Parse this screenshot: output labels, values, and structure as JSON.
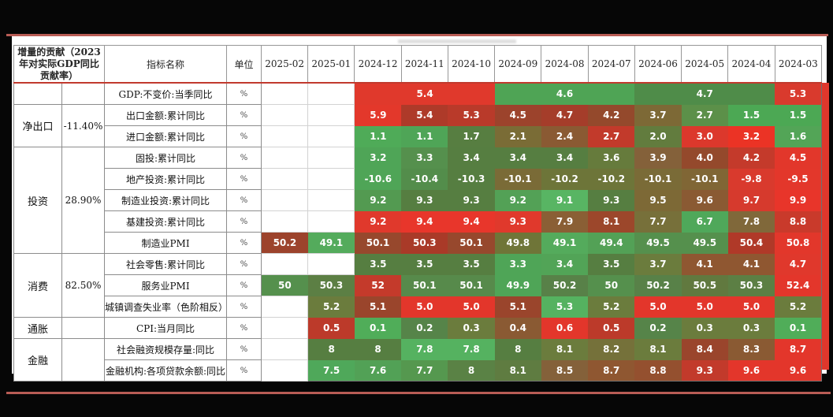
{
  "frame": {
    "background": "#060606",
    "accent_line_color": "#b85c55",
    "clipped_column_color": "#df372c",
    "header_rule_color": "#c13a2e"
  },
  "chart_data": {
    "type": "heatmap",
    "legend_note": "row-wise red(high) to green(low) color scale; unemployment row reversed",
    "columns": [
      "2025-02",
      "2025-01",
      "2024-12",
      "2024-11",
      "2024-10",
      "2024-09",
      "2024-08",
      "2024-07",
      "2024-06",
      "2024-05",
      "2024-04",
      "2024-03"
    ],
    "header": {
      "left": "增量的贡献（2023年对实际GDP同比贡献率）",
      "indicator": "指标名称",
      "unit": "单位"
    },
    "groups": [
      {
        "category": "",
        "contribution": "",
        "rows": [
          {
            "indicator": "GDP:不变价:当季同比",
            "unit": "%",
            "cells": [
              {
                "v": "",
                "span": 1
              },
              {
                "v": "",
                "span": 1
              },
              {
                "v": "5.4",
                "span": 3,
                "bg": "#e0392c"
              },
              {
                "v": "4.6",
                "span": 3,
                "bg": "#4fa455"
              },
              {
                "v": "4.7",
                "span": 3,
                "bg": "#4f8c49"
              },
              {
                "v": "5.3",
                "span": 1,
                "bg": "#d93a2d"
              }
            ]
          }
        ]
      },
      {
        "category": "净出口",
        "contribution": "-11.40%",
        "rows": [
          {
            "indicator": "出口金额:累计同比",
            "unit": "%",
            "cells": [
              {
                "v": ""
              },
              {
                "v": ""
              },
              {
                "v": "5.9",
                "bg": "#e3382b"
              },
              {
                "v": "5.4",
                "bg": "#ae3a29"
              },
              {
                "v": "5.3",
                "bg": "#b93a2a"
              },
              {
                "v": "4.5",
                "bg": "#9c432c"
              },
              {
                "v": "4.7",
                "bg": "#a53d2a"
              },
              {
                "v": "4.2",
                "bg": "#94492c"
              },
              {
                "v": "3.7",
                "bg": "#7d6936"
              },
              {
                "v": "2.7",
                "bg": "#5c9049"
              },
              {
                "v": "1.5",
                "bg": "#4ca854"
              },
              {
                "v": "1.5",
                "bg": "#4ca854"
              }
            ]
          },
          {
            "indicator": "进口金额:累计同比",
            "unit": "%",
            "cells": [
              {
                "v": ""
              },
              {
                "v": ""
              },
              {
                "v": "1.1",
                "bg": "#4fab58"
              },
              {
                "v": "1.1",
                "bg": "#4fa557"
              },
              {
                "v": "1.7",
                "bg": "#577e41"
              },
              {
                "v": "2.1",
                "bg": "#7a6c36"
              },
              {
                "v": "2.4",
                "bg": "#8a5a33"
              },
              {
                "v": "2.7",
                "bg": "#c23a2b"
              },
              {
                "v": "2.0",
                "bg": "#627c3e"
              },
              {
                "v": "3.0",
                "bg": "#dc382c"
              },
              {
                "v": "3.2",
                "bg": "#eb3325"
              },
              {
                "v": "1.6",
                "bg": "#53a557"
              }
            ]
          }
        ]
      },
      {
        "category": "投资",
        "contribution": "28.90%",
        "rows": [
          {
            "indicator": "固投:累计同比",
            "unit": "%",
            "cells": [
              {
                "v": ""
              },
              {
                "v": ""
              },
              {
                "v": "3.2",
                "bg": "#4fa557"
              },
              {
                "v": "3.3",
                "bg": "#55904d"
              },
              {
                "v": "3.4",
                "bg": "#567e41"
              },
              {
                "v": "3.4",
                "bg": "#567e41"
              },
              {
                "v": "3.4",
                "bg": "#567e41"
              },
              {
                "v": "3.6",
                "bg": "#667b3c"
              },
              {
                "v": "3.9",
                "bg": "#84613a"
              },
              {
                "v": "4.0",
                "bg": "#94492c"
              },
              {
                "v": "4.2",
                "bg": "#c43a2b"
              },
              {
                "v": "4.5",
                "bg": "#e2372b"
              }
            ]
          },
          {
            "indicator": "地产投资:累计同比",
            "unit": "%",
            "cells": [
              {
                "v": ""
              },
              {
                "v": ""
              },
              {
                "v": "-10.6",
                "bg": "#4fa557"
              },
              {
                "v": "-10.4",
                "bg": "#538d4b"
              },
              {
                "v": "-10.3",
                "bg": "#567e41"
              },
              {
                "v": "-10.1",
                "bg": "#7a6b37"
              },
              {
                "v": "-10.2",
                "bg": "#6d7539"
              },
              {
                "v": "-10.2",
                "bg": "#6d7539"
              },
              {
                "v": "-10.1",
                "bg": "#7a6b37"
              },
              {
                "v": "-10.1",
                "bg": "#806635"
              },
              {
                "v": "-9.8",
                "bg": "#d93a2d"
              },
              {
                "v": "-9.5",
                "bg": "#e3372b"
              }
            ]
          },
          {
            "indicator": "制造业投资:累计同比",
            "unit": "%",
            "cells": [
              {
                "v": ""
              },
              {
                "v": ""
              },
              {
                "v": "9.2",
                "bg": "#539a51"
              },
              {
                "v": "9.3",
                "bg": "#567e41"
              },
              {
                "v": "9.3",
                "bg": "#567e41"
              },
              {
                "v": "9.2",
                "bg": "#53a156"
              },
              {
                "v": "9.1",
                "bg": "#58b563"
              },
              {
                "v": "9.3",
                "bg": "#567e41"
              },
              {
                "v": "9.5",
                "bg": "#7d6936"
              },
              {
                "v": "9.6",
                "bg": "#8a5a33"
              },
              {
                "v": "9.7",
                "bg": "#d63a2d"
              },
              {
                "v": "9.9",
                "bg": "#e8352a"
              }
            ]
          },
          {
            "indicator": "基建投资:累计同比",
            "unit": "%",
            "cells": [
              {
                "v": ""
              },
              {
                "v": ""
              },
              {
                "v": "9.2",
                "bg": "#e0392c"
              },
              {
                "v": "9.4",
                "bg": "#e8362b"
              },
              {
                "v": "9.4",
                "bg": "#e8362b"
              },
              {
                "v": "9.3",
                "bg": "#e0392c"
              },
              {
                "v": "7.9",
                "bg": "#8a5f35"
              },
              {
                "v": "8.1",
                "bg": "#9c472b"
              },
              {
                "v": "7.7",
                "bg": "#77703a"
              },
              {
                "v": "6.7",
                "bg": "#4fa85a"
              },
              {
                "v": "7.8",
                "bg": "#80683a"
              },
              {
                "v": "8.8",
                "bg": "#c93a2b"
              }
            ]
          },
          {
            "indicator": "制造业PMI",
            "unit": "%",
            "cells": [
              {
                "v": "50.2",
                "bg": "#9c432c"
              },
              {
                "v": "49.1",
                "bg": "#54ab5c"
              },
              {
                "v": "50.1",
                "bg": "#97482d"
              },
              {
                "v": "50.3",
                "bg": "#a93a28"
              },
              {
                "v": "50.1",
                "bg": "#97482d"
              },
              {
                "v": "49.8",
                "bg": "#6f7538"
              },
              {
                "v": "49.1",
                "bg": "#54ab5c"
              },
              {
                "v": "49.4",
                "bg": "#53a156"
              },
              {
                "v": "49.5",
                "bg": "#55904d"
              },
              {
                "v": "49.5",
                "bg": "#55904d"
              },
              {
                "v": "50.4",
                "bg": "#b03928"
              },
              {
                "v": "50.8",
                "bg": "#e2372b"
              }
            ]
          }
        ]
      },
      {
        "category": "消费",
        "contribution": "82.50%",
        "rows": [
          {
            "indicator": "社会零售:累计同比",
            "unit": "%",
            "cells": [
              {
                "v": ""
              },
              {
                "v": ""
              },
              {
                "v": "3.5",
                "bg": "#567e41"
              },
              {
                "v": "3.5",
                "bg": "#567e41"
              },
              {
                "v": "3.5",
                "bg": "#567e41"
              },
              {
                "v": "3.3",
                "bg": "#4fa557"
              },
              {
                "v": "3.4",
                "bg": "#52a457"
              },
              {
                "v": "3.5",
                "bg": "#567e41"
              },
              {
                "v": "3.7",
                "bg": "#6b7c3d"
              },
              {
                "v": "4.1",
                "bg": "#8f5731"
              },
              {
                "v": "4.1",
                "bg": "#8f5731"
              },
              {
                "v": "4.7",
                "bg": "#e0382c"
              }
            ]
          },
          {
            "indicator": "服务业PMI",
            "unit": "%",
            "cells": [
              {
                "v": "50",
                "bg": "#55904d"
              },
              {
                "v": "50.3",
                "bg": "#5c7f44"
              },
              {
                "v": "52",
                "bg": "#c43a2b"
              },
              {
                "v": "50.1",
                "bg": "#578a4b"
              },
              {
                "v": "50.1",
                "bg": "#578a4b"
              },
              {
                "v": "49.9",
                "bg": "#4fa557"
              },
              {
                "v": "50.2",
                "bg": "#588148"
              },
              {
                "v": "50",
                "bg": "#55904d"
              },
              {
                "v": "50.2",
                "bg": "#588148"
              },
              {
                "v": "50.5",
                "bg": "#61793f"
              },
              {
                "v": "50.3",
                "bg": "#5c7f44"
              },
              {
                "v": "52.4",
                "bg": "#e3362b"
              }
            ]
          },
          {
            "indicator": "城镇调查失业率（色阶相反）",
            "unit": "%",
            "cells": [
              {
                "v": ""
              },
              {
                "v": "5.2",
                "bg": "#6b7c3d"
              },
              {
                "v": "5.1",
                "bg": "#9a452c"
              },
              {
                "v": "5.0",
                "bg": "#e3362b"
              },
              {
                "v": "5.0",
                "bg": "#e3362b"
              },
              {
                "v": "5.1",
                "bg": "#9a452c"
              },
              {
                "v": "5.3",
                "bg": "#55b260"
              },
              {
                "v": "5.2",
                "bg": "#6b7c3d"
              },
              {
                "v": "5.0",
                "bg": "#e3362b"
              },
              {
                "v": "5.0",
                "bg": "#e3362b"
              },
              {
                "v": "5.0",
                "bg": "#e3362b"
              },
              {
                "v": "5.2",
                "bg": "#6b7c3d"
              }
            ]
          }
        ]
      },
      {
        "category": "通胀",
        "contribution": "",
        "rows": [
          {
            "indicator": "CPI:当月同比",
            "unit": "%",
            "cells": [
              {
                "v": ""
              },
              {
                "v": "0.5",
                "bg": "#bc3a2a"
              },
              {
                "v": "0.1",
                "bg": "#50ad59"
              },
              {
                "v": "0.2",
                "bg": "#568449"
              },
              {
                "v": "0.3",
                "bg": "#6b7c3d"
              },
              {
                "v": "0.4",
                "bg": "#8a5a33"
              },
              {
                "v": "0.6",
                "bg": "#e3362b"
              },
              {
                "v": "0.5",
                "bg": "#bc3a2a"
              },
              {
                "v": "0.2",
                "bg": "#568449"
              },
              {
                "v": "0.3",
                "bg": "#6b7c3d"
              },
              {
                "v": "0.3",
                "bg": "#6b7c3d"
              },
              {
                "v": "0.1",
                "bg": "#50ad59"
              }
            ]
          }
        ]
      },
      {
        "category": "金融",
        "contribution": "",
        "rows": [
          {
            "indicator": "社会融资规模存量:同比",
            "unit": "%",
            "cells": [
              {
                "v": ""
              },
              {
                "v": "8",
                "bg": "#567e41"
              },
              {
                "v": "8",
                "bg": "#567e41"
              },
              {
                "v": "7.8",
                "bg": "#55b260"
              },
              {
                "v": "7.8",
                "bg": "#55b260"
              },
              {
                "v": "8",
                "bg": "#567e41"
              },
              {
                "v": "8.1",
                "bg": "#6b7c3d"
              },
              {
                "v": "8.2",
                "bg": "#75713a"
              },
              {
                "v": "8.1",
                "bg": "#6b7c3d"
              },
              {
                "v": "8.4",
                "bg": "#9a452c"
              },
              {
                "v": "8.3",
                "bg": "#8a5a33"
              },
              {
                "v": "8.7",
                "bg": "#e3362b"
              }
            ]
          },
          {
            "indicator": "金融机构:各项贷款余额:同比",
            "unit": "%",
            "cells": [
              {
                "v": ""
              },
              {
                "v": "7.5",
                "bg": "#4fa85a"
              },
              {
                "v": "7.6",
                "bg": "#52a156"
              },
              {
                "v": "7.7",
                "bg": "#55984f"
              },
              {
                "v": "8",
                "bg": "#5a8245"
              },
              {
                "v": "8.1",
                "bg": "#5f7c41"
              },
              {
                "v": "8.5",
                "bg": "#84613a"
              },
              {
                "v": "8.7",
                "bg": "#8f5731"
              },
              {
                "v": "8.8",
                "bg": "#94502f"
              },
              {
                "v": "9.3",
                "bg": "#c23a2b"
              },
              {
                "v": "9.6",
                "bg": "#e3362b"
              },
              {
                "v": "9.6",
                "bg": "#e3362b"
              }
            ]
          }
        ]
      }
    ]
  }
}
